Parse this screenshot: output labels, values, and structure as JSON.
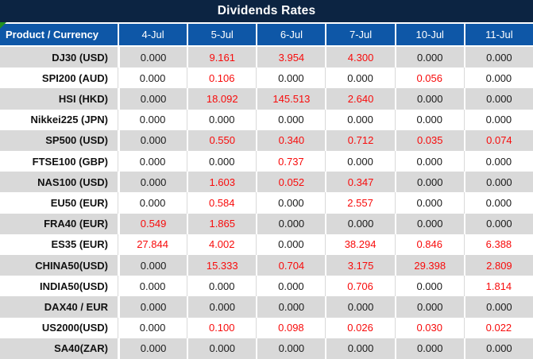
{
  "title": "Dividends Rates",
  "chart_data": {
    "type": "table",
    "title": "Dividends Rates",
    "columns": [
      "Product / Currency",
      "4-Jul",
      "5-Jul",
      "6-Jul",
      "7-Jul",
      "10-Jul",
      "11-Jul"
    ],
    "rows": [
      {
        "product": "DJ30 (USD)",
        "values": [
          "0.000",
          "9.161",
          "3.954",
          "4.300",
          "0.000",
          "0.000"
        ],
        "red": [
          false,
          true,
          true,
          true,
          false,
          false
        ]
      },
      {
        "product": "SPI200 (AUD)",
        "values": [
          "0.000",
          "0.106",
          "0.000",
          "0.000",
          "0.056",
          "0.000"
        ],
        "red": [
          false,
          true,
          false,
          false,
          true,
          false
        ]
      },
      {
        "product": "HSI (HKD)",
        "values": [
          "0.000",
          "18.092",
          "145.513",
          "2.640",
          "0.000",
          "0.000"
        ],
        "red": [
          false,
          true,
          true,
          true,
          false,
          false
        ]
      },
      {
        "product": "Nikkei225 (JPN)",
        "values": [
          "0.000",
          "0.000",
          "0.000",
          "0.000",
          "0.000",
          "0.000"
        ],
        "red": [
          false,
          false,
          false,
          false,
          false,
          false
        ]
      },
      {
        "product": "SP500 (USD)",
        "values": [
          "0.000",
          "0.550",
          "0.340",
          "0.712",
          "0.035",
          "0.074"
        ],
        "red": [
          false,
          true,
          true,
          true,
          true,
          true
        ]
      },
      {
        "product": "FTSE100 (GBP)",
        "values": [
          "0.000",
          "0.000",
          "0.737",
          "0.000",
          "0.000",
          "0.000"
        ],
        "red": [
          false,
          false,
          true,
          false,
          false,
          false
        ]
      },
      {
        "product": "NAS100 (USD)",
        "values": [
          "0.000",
          "1.603",
          "0.052",
          "0.347",
          "0.000",
          "0.000"
        ],
        "red": [
          false,
          true,
          true,
          true,
          false,
          false
        ]
      },
      {
        "product": "EU50 (EUR)",
        "values": [
          "0.000",
          "0.584",
          "0.000",
          "2.557",
          "0.000",
          "0.000"
        ],
        "red": [
          false,
          true,
          false,
          true,
          false,
          false
        ]
      },
      {
        "product": "FRA40 (EUR)",
        "values": [
          "0.549",
          "1.865",
          "0.000",
          "0.000",
          "0.000",
          "0.000"
        ],
        "red": [
          true,
          true,
          false,
          false,
          false,
          false
        ]
      },
      {
        "product": "ES35 (EUR)",
        "values": [
          "27.844",
          "4.002",
          "0.000",
          "38.294",
          "0.846",
          "6.388"
        ],
        "red": [
          true,
          true,
          false,
          true,
          true,
          true
        ]
      },
      {
        "product": "CHINA50(USD)",
        "values": [
          "0.000",
          "15.333",
          "0.704",
          "3.175",
          "29.398",
          "2.809"
        ],
        "red": [
          false,
          true,
          true,
          true,
          true,
          true
        ]
      },
      {
        "product": "INDIA50(USD)",
        "values": [
          "0.000",
          "0.000",
          "0.000",
          "0.706",
          "0.000",
          "1.814"
        ],
        "red": [
          false,
          false,
          false,
          true,
          false,
          true
        ]
      },
      {
        "product": "DAX40 / EUR",
        "values": [
          "0.000",
          "0.000",
          "0.000",
          "0.000",
          "0.000",
          "0.000"
        ],
        "red": [
          false,
          false,
          false,
          false,
          false,
          false
        ]
      },
      {
        "product": "US2000(USD)",
        "values": [
          "0.000",
          "0.100",
          "0.098",
          "0.026",
          "0.030",
          "0.022"
        ],
        "red": [
          false,
          true,
          true,
          true,
          true,
          true
        ]
      },
      {
        "product": "SA40(ZAR)",
        "values": [
          "0.000",
          "0.000",
          "0.000",
          "0.000",
          "0.000",
          "0.000"
        ],
        "red": [
          false,
          false,
          false,
          false,
          false,
          false
        ]
      }
    ],
    "layout": {
      "grid": "alternating-row-stripes",
      "red_means": "non-zero dividend value"
    }
  },
  "icons": {
    "note_triangle": "green corner marker on header cell"
  },
  "colors": {
    "navy": "#0C2442",
    "blue": "#0E57A7",
    "gray": "#D9D9D9",
    "red": "#F80B0B",
    "ink": "#1A1A1A",
    "green": "#22901F"
  }
}
